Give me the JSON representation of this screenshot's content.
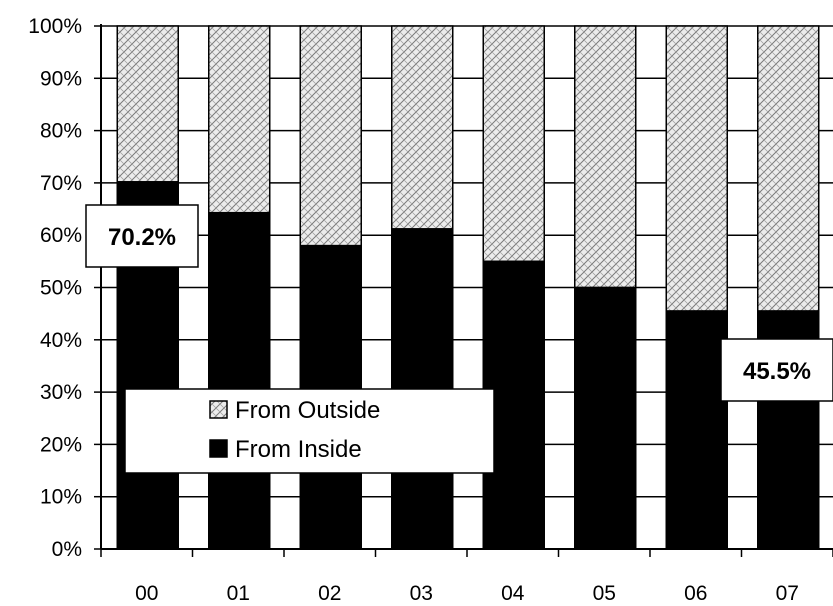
{
  "chart_data": {
    "type": "bar",
    "stacked": true,
    "categories": [
      "00",
      "01",
      "02",
      "03",
      "04",
      "05",
      "06",
      "07"
    ],
    "series": [
      {
        "name": "From Inside",
        "values": [
          70.2,
          64.3,
          58.0,
          61.2,
          55.0,
          50.0,
          45.5,
          45.5
        ],
        "color": "#000000"
      },
      {
        "name": "From Outside",
        "values": [
          29.8,
          35.7,
          42.0,
          38.8,
          45.0,
          50.0,
          54.5,
          54.5
        ],
        "color": "#d4d4d4",
        "pattern": "woven-hatch"
      }
    ],
    "ylim": [
      0,
      100
    ],
    "yticks": [
      "0%",
      "10%",
      "20%",
      "30%",
      "40%",
      "50%",
      "60%",
      "70%",
      "80%",
      "90%",
      "100%"
    ],
    "annotations": [
      {
        "label": "70.2%",
        "category": "00",
        "series": "From Inside"
      },
      {
        "label": "45.5%",
        "category": "07",
        "series": "From Inside"
      }
    ],
    "legend": {
      "position": "bottom-left",
      "items": [
        {
          "label": "From Outside",
          "series": "From Outside"
        },
        {
          "label": "From Inside",
          "series": "From Inside"
        }
      ]
    },
    "grid": true
  }
}
